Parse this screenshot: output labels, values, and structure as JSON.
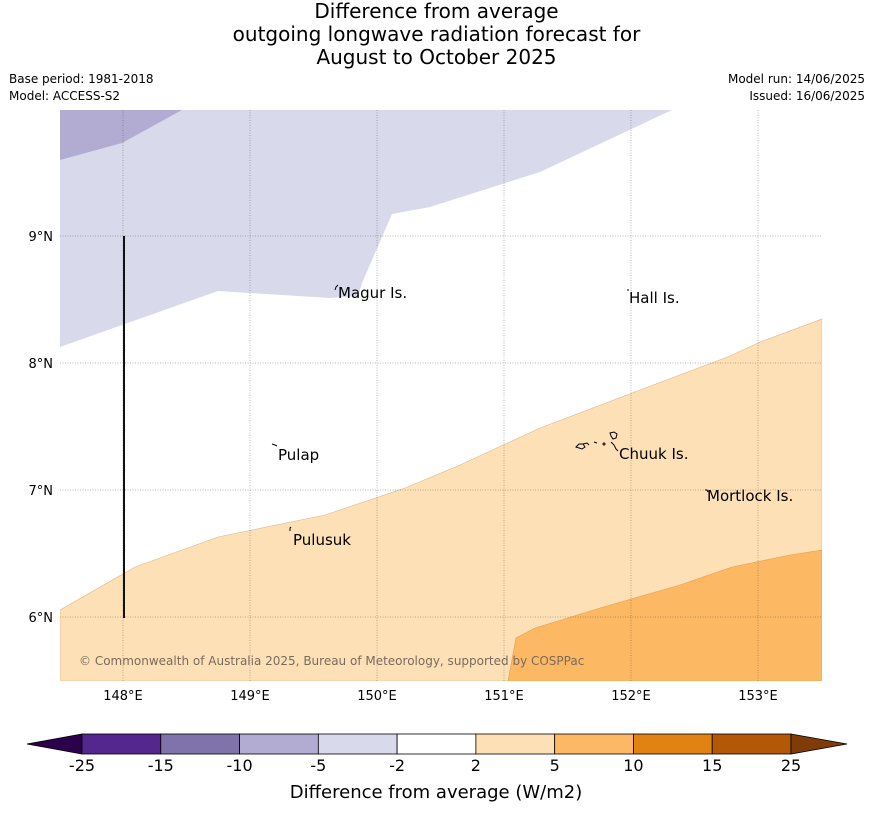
{
  "title": {
    "line1": "Difference from average",
    "line2": "outgoing longwave radiation forecast for",
    "line3": "August to October 2025"
  },
  "meta": {
    "base_period": "Base period: 1981-2018",
    "model": "Model: ACCESS-S2",
    "model_run": "Model run: 14/06/2025",
    "issued": "Issued: 16/06/2025"
  },
  "map": {
    "lon_range": [
      147.5,
      153.5
    ],
    "lat_range": [
      5.5,
      10.0
    ],
    "lon_ticks": [
      "148°E",
      "149°E",
      "150°E",
      "151°E",
      "152°E",
      "153°E"
    ],
    "lat_ticks": [
      "9°N",
      "8°N",
      "7°N",
      "6°N"
    ],
    "gridlines": true,
    "places": [
      {
        "name": "Magur Is."
      },
      {
        "name": "Hall Is."
      },
      {
        "name": "Pulap"
      },
      {
        "name": "Chuuk Is."
      },
      {
        "name": "Mortlock Is."
      },
      {
        "name": "Pulusuk"
      }
    ],
    "copyright": "© Commonwealth of Australia 2025, Bureau of Meteorology, supported by COSPPac"
  },
  "colorbar": {
    "title": "Difference from average (W/m2)",
    "bins": [
      {
        "from": "-25",
        "to": "-15",
        "color": "#54278f"
      },
      {
        "from": "-15",
        "to": "-10",
        "color": "#8073ac"
      },
      {
        "from": "-10",
        "to": "-5",
        "color": "#b2abd2"
      },
      {
        "from": "-5",
        "to": "-2",
        "color": "#d8daeb"
      },
      {
        "from": "-2",
        "to": "2",
        "color": "#ffffff"
      },
      {
        "from": "2",
        "to": "5",
        "color": "#fee0b6"
      },
      {
        "from": "5",
        "to": "10",
        "color": "#fdb863"
      },
      {
        "from": "10",
        "to": "15",
        "color": "#e08214"
      },
      {
        "from": "15",
        "to": "25",
        "color": "#b35806"
      }
    ],
    "labels": [
      "-25",
      "-15",
      "-10",
      "-5",
      "-2",
      "2",
      "5",
      "10",
      "15",
      "25"
    ],
    "extend_low_color": "#2d004b",
    "extend_high_color": "#7f3b08"
  }
}
